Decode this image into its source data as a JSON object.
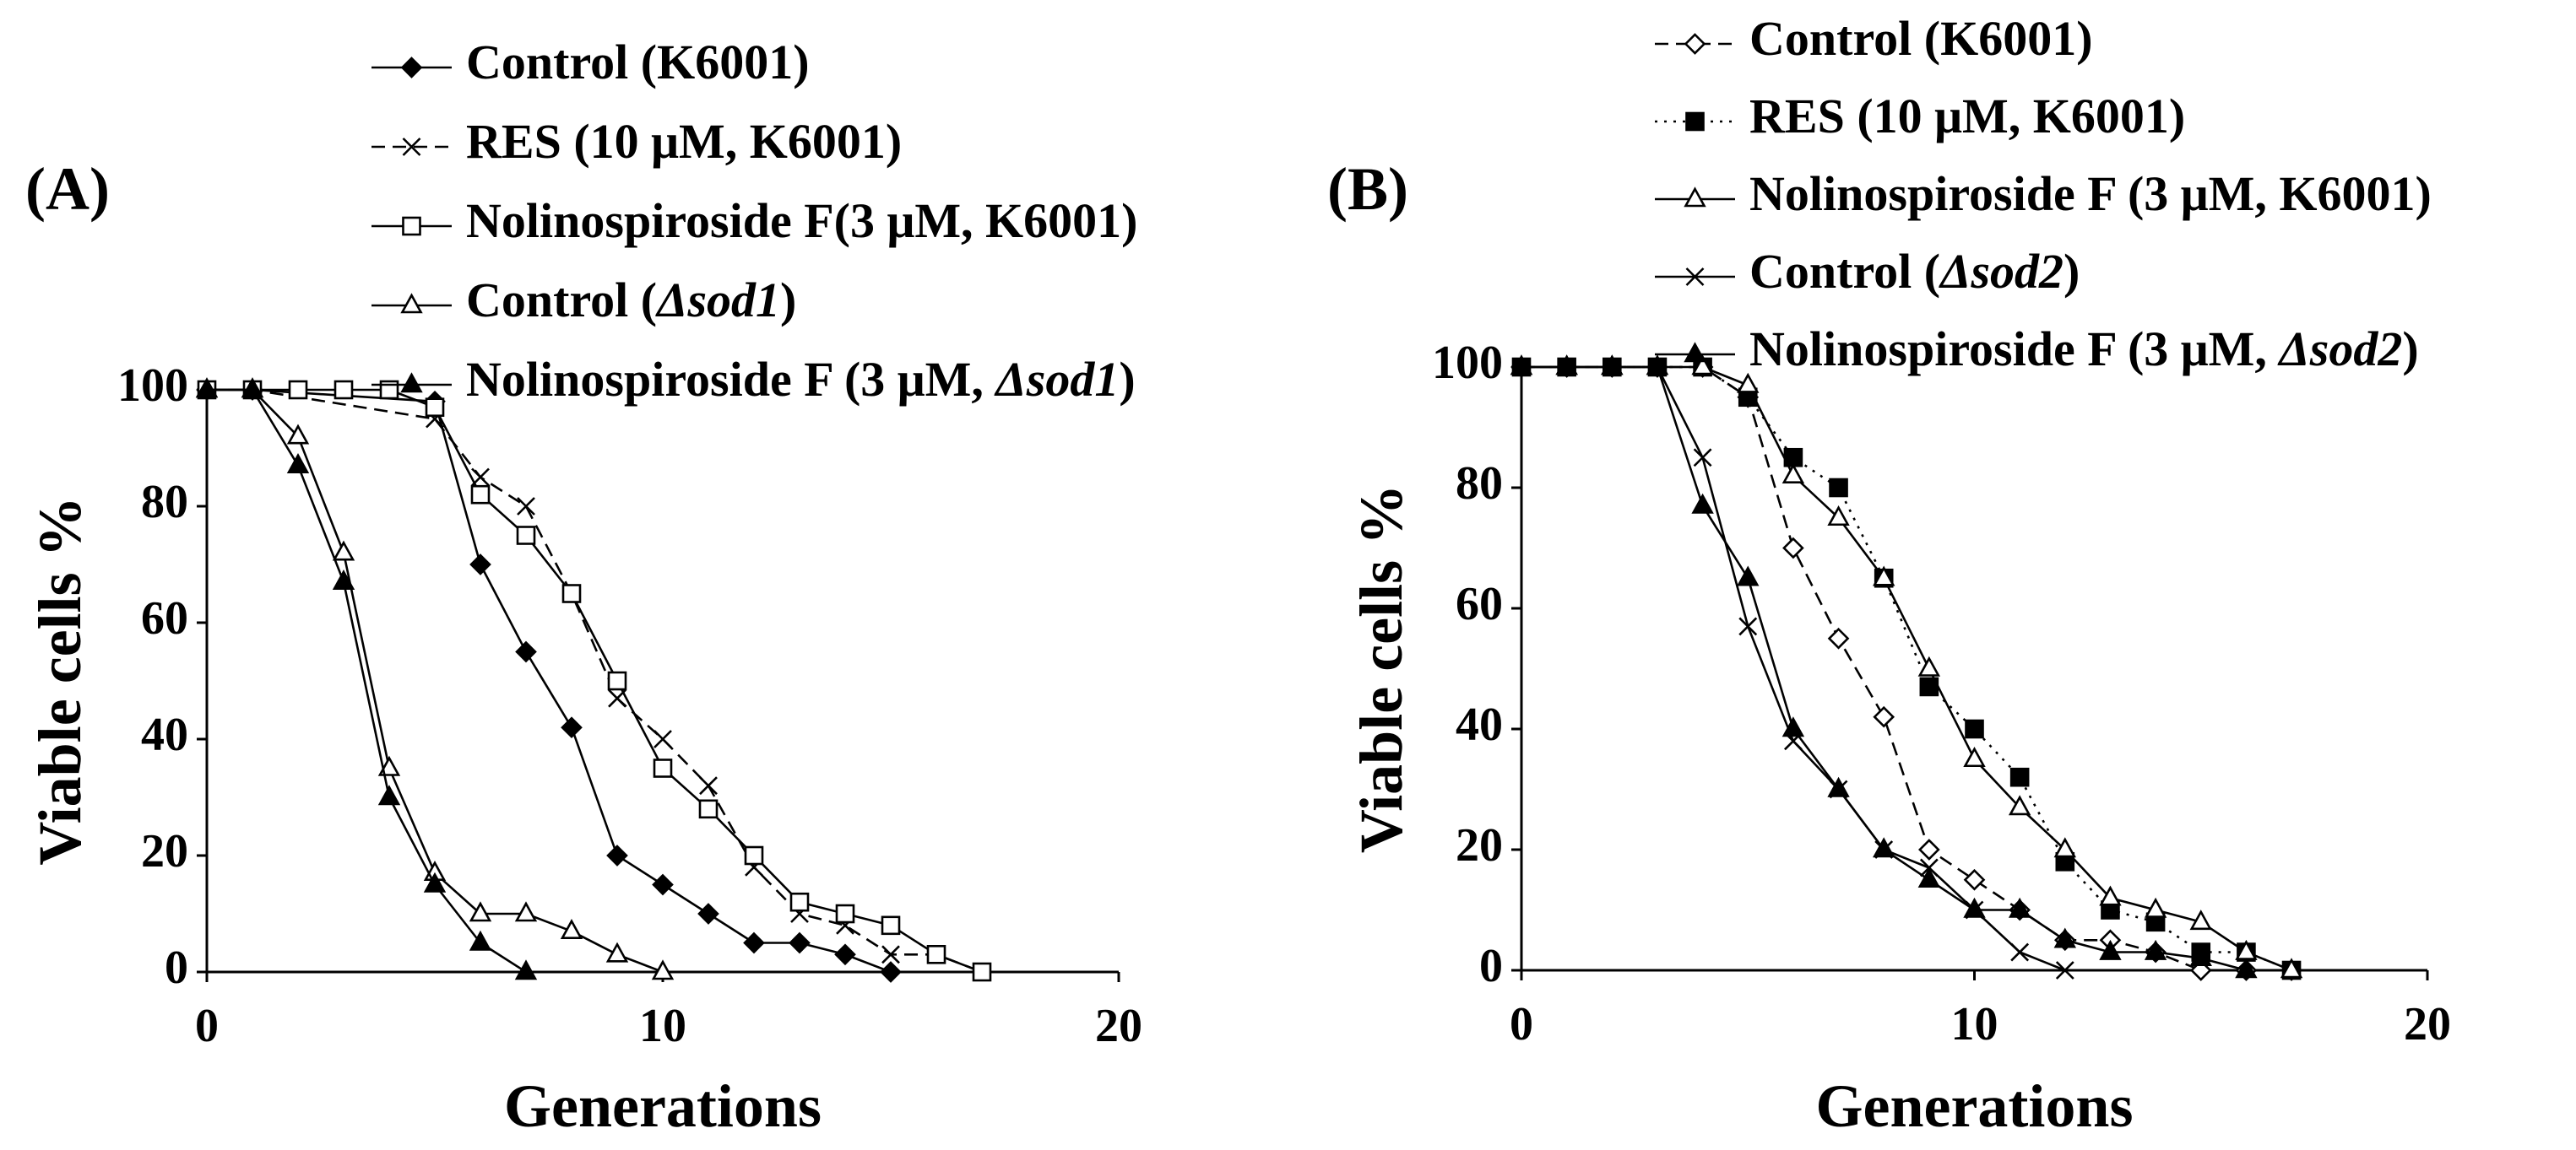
{
  "chart_data": [
    {
      "type": "line",
      "panel_label": "(A)",
      "xlabel": "Generations",
      "ylabel": "Viable cells %",
      "xlim": [
        0,
        20
      ],
      "ylim": [
        0,
        100
      ],
      "x_ticks": [
        0,
        10,
        20
      ],
      "y_ticks": [
        0,
        20,
        40,
        60,
        80,
        100
      ],
      "grid": false,
      "legend_position": "top",
      "series": [
        {
          "name": "Control (K6001)",
          "label_parts": [
            {
              "t": "Control (K6001)",
              "i": false
            }
          ],
          "marker": "diamond-filled",
          "line": "solid",
          "x": [
            0,
            1,
            5,
            6,
            7,
            8,
            9,
            10,
            11,
            12,
            13,
            14,
            15
          ],
          "y": [
            100,
            100,
            98,
            70,
            55,
            42,
            20,
            15,
            10,
            5,
            5,
            3,
            0
          ]
        },
        {
          "name": "RES (10 μM, K6001)",
          "label_parts": [
            {
              "t": "RES (10 μM, K6001)",
              "i": false
            }
          ],
          "marker": "x",
          "line": "dashed",
          "x": [
            0,
            1,
            5,
            6,
            7,
            8,
            9,
            10,
            11,
            12,
            13,
            14,
            15,
            16,
            17
          ],
          "y": [
            100,
            100,
            95,
            85,
            80,
            65,
            47,
            40,
            32,
            18,
            10,
            8,
            3,
            3,
            0
          ]
        },
        {
          "name": "Nolinospiroside F(3 μM, K6001)",
          "label_parts": [
            {
              "t": "Nolinospiroside F(3 μM, K6001)",
              "i": false
            }
          ],
          "marker": "square-open",
          "line": "solid",
          "x": [
            0,
            1,
            2,
            3,
            4,
            5,
            6,
            7,
            8,
            9,
            10,
            11,
            12,
            13,
            14,
            15,
            16,
            17
          ],
          "y": [
            100,
            100,
            100,
            100,
            100,
            97,
            82,
            75,
            65,
            50,
            35,
            28,
            20,
            12,
            10,
            8,
            3,
            0
          ]
        },
        {
          "name": "Control (Δsod1)",
          "label_parts": [
            {
              "t": "Control (",
              "i": false
            },
            {
              "t": "Δsod1",
              "i": true
            },
            {
              "t": ")",
              "i": false
            }
          ],
          "marker": "triangle-open",
          "line": "solid",
          "x": [
            0,
            1,
            2,
            3,
            4,
            5,
            6,
            7,
            8,
            9,
            10
          ],
          "y": [
            100,
            100,
            92,
            72,
            35,
            17,
            10,
            10,
            7,
            3,
            0
          ]
        },
        {
          "name": "Nolinospiroside F (3 μM, Δsod1)",
          "label_parts": [
            {
              "t": "Nolinospiroside F (3 μM, ",
              "i": false
            },
            {
              "t": "Δsod1",
              "i": true
            },
            {
              "t": ")",
              "i": false
            }
          ],
          "marker": "triangle-filled",
          "line": "solid",
          "x": [
            0,
            1,
            2,
            3,
            4,
            5,
            6,
            7
          ],
          "y": [
            100,
            100,
            87,
            67,
            30,
            15,
            5,
            0
          ]
        }
      ]
    },
    {
      "type": "line",
      "panel_label": "(B)",
      "xlabel": "Generations",
      "ylabel": "Viable cells %",
      "xlim": [
        0,
        20
      ],
      "ylim": [
        0,
        100
      ],
      "x_ticks": [
        0,
        10,
        20
      ],
      "y_ticks": [
        0,
        20,
        40,
        60,
        80,
        100
      ],
      "grid": false,
      "legend_position": "top",
      "series": [
        {
          "name": "Control (K6001)",
          "label_parts": [
            {
              "t": "Control (K6001)",
              "i": false
            }
          ],
          "marker": "diamond-open",
          "line": "dashed",
          "x": [
            0,
            1,
            2,
            3,
            4,
            5,
            6,
            7,
            8,
            9,
            10,
            11,
            12,
            13,
            14,
            15,
            16,
            17
          ],
          "y": [
            100,
            100,
            100,
            100,
            100,
            95,
            70,
            55,
            42,
            20,
            15,
            10,
            5,
            5,
            3,
            0,
            0,
            0
          ]
        },
        {
          "name": "RES (10 μM, K6001)",
          "label_parts": [
            {
              "t": "RES (10 μM, K6001)",
              "i": false
            }
          ],
          "marker": "square-filled",
          "line": "dotted",
          "x": [
            0,
            1,
            2,
            3,
            4,
            5,
            6,
            7,
            8,
            9,
            10,
            11,
            12,
            13,
            14,
            15,
            16,
            17
          ],
          "y": [
            100,
            100,
            100,
            100,
            100,
            95,
            85,
            80,
            65,
            47,
            40,
            32,
            18,
            10,
            8,
            3,
            3,
            0
          ]
        },
        {
          "name": "Nolinospiroside F (3 μM, K6001)",
          "label_parts": [
            {
              "t": "Nolinospiroside F (3 μM, K6001)",
              "i": false
            }
          ],
          "marker": "triangle-open",
          "line": "solid",
          "x": [
            0,
            1,
            2,
            3,
            4,
            5,
            6,
            7,
            8,
            9,
            10,
            11,
            12,
            13,
            14,
            15,
            16,
            17
          ],
          "y": [
            100,
            100,
            100,
            100,
            100,
            97,
            82,
            75,
            65,
            50,
            35,
            27,
            20,
            12,
            10,
            8,
            3,
            0
          ]
        },
        {
          "name": "Control (Δsod2)",
          "label_parts": [
            {
              "t": "Control (",
              "i": false
            },
            {
              "t": "Δsod2",
              "i": true
            },
            {
              "t": ")",
              "i": false
            }
          ],
          "marker": "x",
          "line": "solid",
          "x": [
            0,
            1,
            2,
            3,
            4,
            5,
            6,
            7,
            8,
            9,
            10,
            11,
            12
          ],
          "y": [
            100,
            100,
            100,
            100,
            85,
            57,
            38,
            30,
            20,
            17,
            10,
            3,
            0
          ]
        },
        {
          "name": "Nolinospiroside F (3 μM, Δsod2)",
          "label_parts": [
            {
              "t": "Nolinospiroside F (3 μM, ",
              "i": false
            },
            {
              "t": "Δsod2",
              "i": true
            },
            {
              "t": ")",
              "i": false
            }
          ],
          "marker": "triangle-filled",
          "line": "solid",
          "x": [
            0,
            1,
            2,
            3,
            4,
            5,
            6,
            7,
            8,
            9,
            10,
            11,
            12,
            13,
            14,
            15,
            16
          ],
          "y": [
            100,
            100,
            100,
            100,
            77,
            65,
            40,
            30,
            20,
            15,
            10,
            10,
            5,
            3,
            3,
            2,
            0
          ]
        }
      ]
    }
  ]
}
